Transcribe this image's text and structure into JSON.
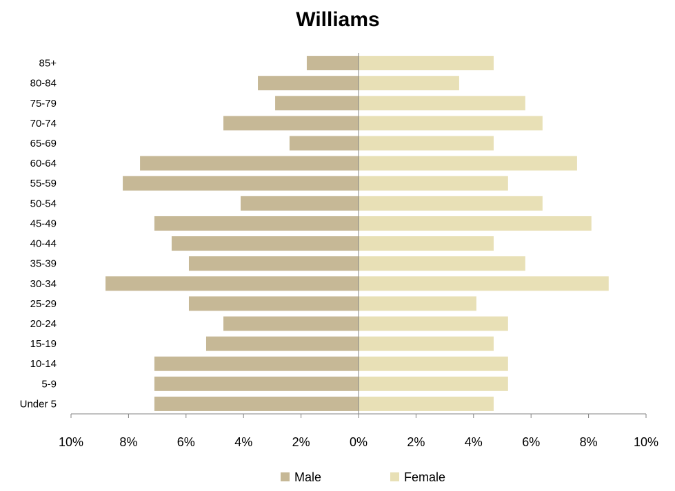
{
  "chart_data": {
    "type": "bar",
    "orientation": "horizontal",
    "layout": "population-pyramid",
    "title": "Williams",
    "categories": [
      "Under 5",
      "5-9",
      "10-14",
      "15-19",
      "20-24",
      "25-29",
      "30-34",
      "35-39",
      "40-44",
      "45-49",
      "50-54",
      "55-59",
      "60-64",
      "65-69",
      "70-74",
      "75-79",
      "80-84",
      "85+"
    ],
    "series": [
      {
        "name": "Male",
        "color": "#c6b896",
        "side": "left",
        "values": [
          7.1,
          7.1,
          7.1,
          5.3,
          4.7,
          5.9,
          8.8,
          5.9,
          6.5,
          7.1,
          4.1,
          8.2,
          7.6,
          2.4,
          4.7,
          2.9,
          3.5,
          1.8
        ]
      },
      {
        "name": "Female",
        "color": "#e8e0b6",
        "side": "right",
        "values": [
          4.7,
          5.2,
          5.2,
          4.7,
          5.2,
          4.1,
          8.7,
          5.8,
          4.7,
          8.1,
          6.4,
          5.2,
          7.6,
          4.7,
          6.4,
          5.8,
          3.5,
          4.7
        ]
      }
    ],
    "xlim": [
      -10,
      10
    ],
    "xticks": [
      -10,
      -8,
      -6,
      -4,
      -2,
      0,
      2,
      4,
      6,
      8,
      10
    ],
    "xtick_labels": [
      "10%",
      "8%",
      "6%",
      "4%",
      "2%",
      "0%",
      "2%",
      "4%",
      "6%",
      "8%",
      "10%"
    ],
    "xlabel": "",
    "ylabel": "",
    "grid": false,
    "legend_position": "bottom",
    "axis_color": "#808080"
  }
}
